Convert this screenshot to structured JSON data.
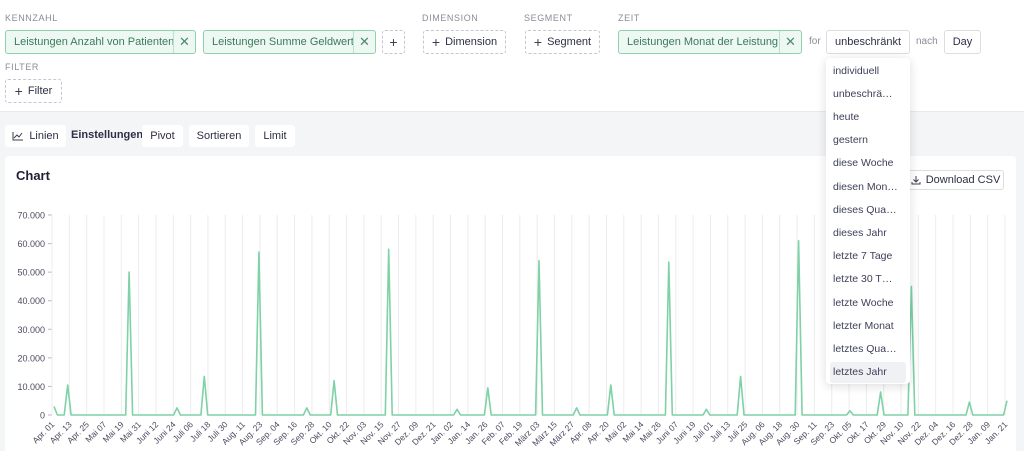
{
  "sections": {
    "kennzahl": "KENNZAHL",
    "dimension": "DIMENSION",
    "segment": "SEGMENT",
    "zeit": "ZEIT",
    "filter": "FILTER"
  },
  "measures": [
    "Leistungen Anzahl von Patienten",
    "Leistungen Summe Geldwert"
  ],
  "dimension_button": "Dimension",
  "segment_button": "Segment",
  "time": {
    "pill": "Leistungen Monat der Leistung",
    "for_label": "for",
    "range": "unbeschränkt",
    "nach_label": "nach",
    "granularity": "Day"
  },
  "filter_button": "Filter",
  "toolbar": {
    "chart_type": "Linien",
    "settings_label": "Einstellungen:",
    "pivot": "Pivot",
    "sort": "Sortieren",
    "limit": "Limit"
  },
  "card": {
    "title": "Chart",
    "download": "Download CSV"
  },
  "dropdown": {
    "items": [
      "individuell",
      "unbeschrä…",
      "heute",
      "gestern",
      "diese Woche",
      "diesen Mon…",
      "dieses Qua…",
      "dieses Jahr",
      "letzte 7 Tage",
      "letzte 30 T…",
      "letzte Woche",
      "letzter Monat",
      "letztes Qua…",
      "letztes Jahr"
    ],
    "selected_index": 13
  },
  "colors": {
    "line": "#7fd1a6",
    "accent_green": "#8fd0ad",
    "grid": "#ececf0"
  },
  "chart_data": {
    "type": "line",
    "y_ticks": [
      "0",
      "10.000",
      "20.000",
      "30.000",
      "40.000",
      "50.000",
      "60.000",
      "70.000"
    ],
    "ylim": [
      0,
      70000
    ],
    "x_ticks": [
      "Apr. 01",
      "Apr. 13",
      "Apr. 25",
      "Mai 07",
      "Mai 19",
      "Mai 31",
      "Juni 12",
      "Juni 24",
      "Juli 06",
      "Juli 18",
      "Juli 30",
      "Aug. 11",
      "Aug. 23",
      "Sep. 04",
      "Sep. 16",
      "Sep. 28",
      "Okt. 10",
      "Okt. 22",
      "Nov. 03",
      "Nov. 15",
      "Nov. 27",
      "Dez. 09",
      "Dez. 21",
      "Jan. 02",
      "Jan. 14",
      "Jan. 26",
      "Feb. 07",
      "Feb. 19",
      "März 03",
      "März 15",
      "März 27",
      "Apr. 08",
      "Apr. 20",
      "Mai 02",
      "Mai 14",
      "Mai 26",
      "Juni 07",
      "Juni 19",
      "Juli 01",
      "Juli 13",
      "Juli 25",
      "Aug. 06",
      "Aug. 18",
      "Aug. 30",
      "Sep. 11",
      "Sep. 23",
      "Okt. 05",
      "Okt. 17",
      "Okt. 29",
      "Nov. 10",
      "Nov. 22",
      "Dez. 04",
      "Dez. 16",
      "Dez. 28",
      "Jan. 09",
      "Jan. 21"
    ],
    "grid": true,
    "series": [
      {
        "values": [
          3000,
          0,
          0,
          0,
          10500,
          0,
          0,
          0,
          0,
          0,
          0,
          0,
          0,
          0,
          0,
          0,
          0,
          0,
          0,
          0,
          0,
          0,
          50000,
          0,
          0,
          0,
          0,
          0,
          0,
          0,
          0,
          0,
          0,
          0,
          0,
          0,
          2500,
          0,
          0,
          0,
          0,
          0,
          0,
          0,
          13500,
          0,
          0,
          0,
          0,
          0,
          0,
          0,
          0,
          0,
          0,
          0,
          0,
          0,
          0,
          0,
          57000,
          0,
          0,
          0,
          0,
          0,
          0,
          0,
          0,
          0,
          0,
          0,
          0,
          0,
          2500,
          0,
          0,
          0,
          0,
          0,
          0,
          0,
          12000,
          0,
          0,
          0,
          0,
          0,
          0,
          0,
          0,
          0,
          0,
          0,
          0,
          0,
          0,
          0,
          58000,
          0,
          0,
          0,
          0,
          0,
          0,
          0,
          0,
          0,
          0,
          0,
          0,
          0,
          0,
          0,
          0,
          0,
          0,
          0,
          2000,
          0,
          0,
          0,
          0,
          0,
          0,
          0,
          0,
          9500,
          0,
          0,
          0,
          0,
          0,
          0,
          0,
          0,
          0,
          0,
          0,
          0,
          0,
          0,
          54000,
          0,
          0,
          0,
          0,
          0,
          0,
          0,
          0,
          0,
          0,
          2500,
          0,
          0,
          0,
          0,
          0,
          0,
          0,
          0,
          0,
          10500,
          0,
          0,
          0,
          0,
          0,
          0,
          0,
          0,
          0,
          0,
          0,
          0,
          0,
          0,
          0,
          0,
          53500,
          0,
          0,
          0,
          0,
          0,
          0,
          0,
          0,
          0,
          0,
          2000,
          0,
          0,
          0,
          0,
          0,
          0,
          0,
          0,
          0,
          13500,
          0,
          0,
          0,
          0,
          0,
          0,
          0,
          0,
          0,
          0,
          0,
          0,
          0,
          0,
          0,
          0,
          61000,
          0,
          0,
          0,
          0,
          0,
          0,
          0,
          0,
          0,
          0,
          0,
          0,
          0,
          0,
          1500,
          0,
          0,
          0,
          0,
          0,
          0,
          0,
          0,
          8000,
          0,
          0,
          0,
          0,
          0,
          0,
          0,
          0,
          45000,
          0,
          0,
          0,
          0,
          0,
          0,
          0,
          0,
          0,
          0,
          0,
          0,
          0,
          0,
          0,
          0,
          4500,
          0,
          0,
          0,
          0,
          0,
          0,
          0,
          0,
          0,
          0,
          5000
        ]
      }
    ]
  }
}
